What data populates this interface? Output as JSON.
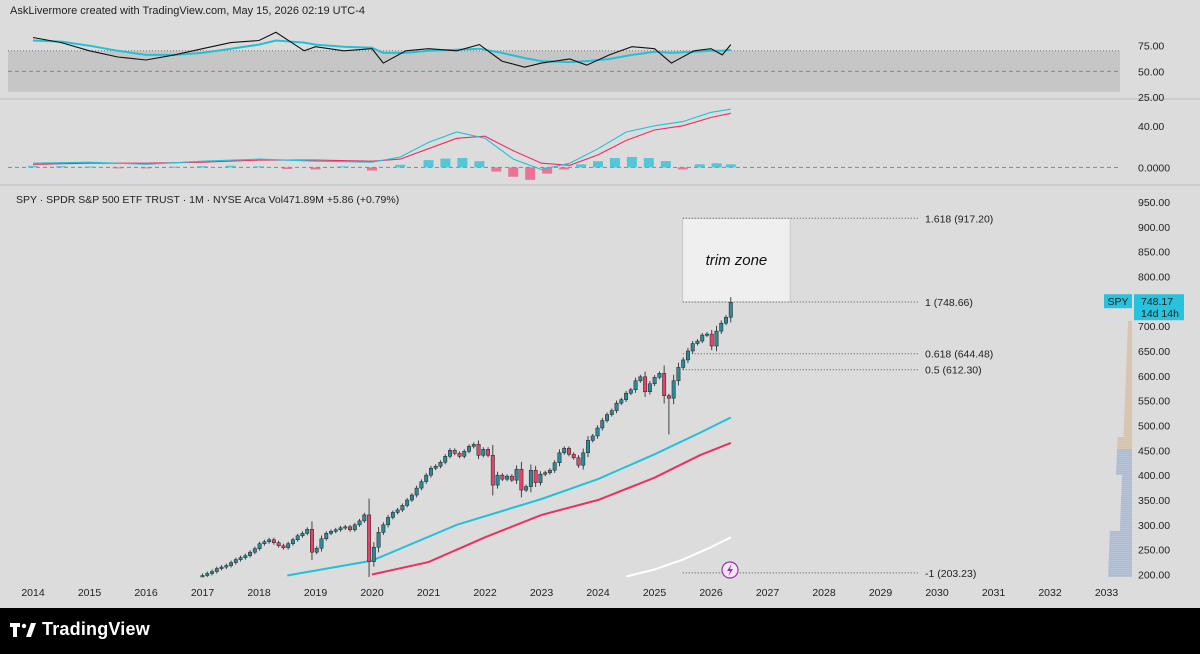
{
  "header": {
    "credit": "AskLivermore created with TradingView.com, May 15, 2026 02:19 UTC-4"
  },
  "symbol": {
    "line": "SPY · SPDR S&P 500 ETF TRUST · 1M · NYSE Arca  Vol471.89M  +5.86 (+0.79%)"
  },
  "price_tag": {
    "symbol": "SPY",
    "price": "748.17",
    "countdown": "14d 14h"
  },
  "annotation": {
    "trim_zone": "trim zone"
  },
  "footer": {
    "brand": "TradingView"
  },
  "colors": {
    "background": "#dcdcdc",
    "candle_up": "#2a8a96",
    "candle_down": "#e0456e",
    "ma_cyan": "#22c1d8",
    "ma_red": "#ee2e63",
    "ma_white": "#ffffff",
    "rsi_line": "#111111",
    "rsi_signal": "#22c1d8",
    "macd_line": "#22c1d8",
    "macd_signal": "#ee2e63"
  },
  "chart_data": [
    {
      "type": "line",
      "panel": "rsi",
      "y_ticks": [
        "75.00",
        "50.00",
        "25.00"
      ],
      "ylim": [
        25,
        100
      ],
      "band": [
        30,
        70
      ],
      "x_years": [
        2014.0,
        2014.5,
        2015.0,
        2015.5,
        2016.0,
        2016.5,
        2017.0,
        2017.5,
        2018.0,
        2018.3,
        2018.8,
        2019.0,
        2019.5,
        2020.0,
        2020.2,
        2020.6,
        2021.0,
        2021.5,
        2021.9,
        2022.3,
        2022.7,
        2023.0,
        2023.5,
        2023.8,
        2024.2,
        2024.6,
        2025.0,
        2025.3,
        2025.7,
        2026.0,
        2026.2,
        2026.35
      ],
      "rsi": [
        83,
        78,
        70,
        64,
        61,
        66,
        72,
        78,
        80,
        88,
        70,
        74,
        70,
        72,
        58,
        70,
        72,
        70,
        76,
        60,
        54,
        58,
        62,
        56,
        66,
        74,
        72,
        58,
        70,
        72,
        66,
        76
      ],
      "signal": [
        80,
        79,
        75,
        70,
        66,
        66,
        68,
        72,
        76,
        80,
        78,
        76,
        74,
        73,
        68,
        68,
        70,
        71,
        72,
        68,
        63,
        60,
        59,
        60,
        62,
        66,
        69,
        68,
        69,
        70,
        70,
        71
      ]
    },
    {
      "type": "bar",
      "panel": "macd",
      "y_ticks": [
        "40.00",
        "0.0000"
      ],
      "ylim": [
        -15,
        60
      ],
      "x_years": [
        2014.0,
        2015.0,
        2016.0,
        2017.0,
        2018.0,
        2019.0,
        2020.0,
        2020.5,
        2021.0,
        2021.5,
        2022.0,
        2022.5,
        2023.0,
        2023.5,
        2024.0,
        2024.5,
        2025.0,
        2025.5,
        2026.0,
        2026.35
      ],
      "macd": [
        4,
        5,
        3,
        6,
        8,
        6,
        5,
        10,
        24,
        34,
        28,
        8,
        -2,
        4,
        18,
        34,
        40,
        44,
        53,
        56
      ],
      "signal": [
        3,
        4,
        4,
        5,
        7,
        7,
        6,
        8,
        18,
        28,
        30,
        16,
        4,
        2,
        12,
        26,
        36,
        40,
        48,
        52
      ],
      "histogram_x": [
        2014.0,
        2014.5,
        2015.0,
        2015.5,
        2016.0,
        2016.5,
        2017.0,
        2017.5,
        2018.0,
        2018.5,
        2019.0,
        2019.5,
        2020.0,
        2020.5,
        2021.0,
        2021.3,
        2021.6,
        2021.9,
        2022.2,
        2022.5,
        2022.8,
        2023.1,
        2023.4,
        2023.7,
        2024.0,
        2024.3,
        2024.6,
        2024.9,
        2025.2,
        2025.5,
        2025.8,
        2026.1,
        2026.35
      ],
      "histogram": [
        1.5,
        1.2,
        0.8,
        -0.6,
        -0.8,
        0.6,
        1.2,
        1.6,
        1.0,
        -1.5,
        -2.0,
        1.0,
        -3.0,
        2.5,
        7.0,
        8.5,
        9.0,
        6.0,
        -4.0,
        -9.0,
        -12.0,
        -6.0,
        -2.0,
        3.0,
        6.0,
        9.0,
        10.0,
        9.0,
        6.0,
        -2.0,
        3.0,
        4.0,
        3.0
      ]
    },
    {
      "type": "candlestick",
      "panel": "price",
      "title": "SPY · SPDR S&P 500 ETF TRUST · 1M · NYSE Arca",
      "x_ticks": [
        "2014",
        "2015",
        "2016",
        "2017",
        "2018",
        "2019",
        "2020",
        "2021",
        "2022",
        "2023",
        "2024",
        "2025",
        "2026",
        "2027",
        "2028",
        "2029",
        "2030",
        "2031",
        "2032",
        "2033"
      ],
      "xlim": [
        2014,
        2033
      ],
      "y_ticks": [
        "950.00",
        "900.00",
        "850.00",
        "800.00",
        "750.00",
        "700.00",
        "650.00",
        "600.00",
        "550.00",
        "500.00",
        "450.00",
        "400.00",
        "350.00",
        "300.00",
        "250.00",
        "200.00"
      ],
      "ylim": [
        195,
        960
      ],
      "closes": [
        198,
        202,
        206,
        212,
        215,
        218,
        224,
        230,
        234,
        238,
        245,
        252,
        262,
        266,
        270,
        264,
        258,
        254,
        262,
        270,
        278,
        283,
        291,
        245,
        253,
        272,
        283,
        287,
        290,
        294,
        296,
        290,
        300,
        308,
        320,
        226,
        255,
        285,
        300,
        315,
        325,
        330,
        339,
        350,
        360,
        374,
        387,
        400,
        414,
        418,
        426,
        438,
        450,
        444,
        438,
        448,
        458,
        462,
        440,
        452,
        440,
        380,
        400,
        392,
        398,
        390,
        412,
        370,
        377,
        410,
        385,
        402,
        405,
        410,
        425,
        445,
        454,
        442,
        435,
        420,
        445,
        470,
        479,
        495,
        510,
        522,
        530,
        545,
        552,
        565,
        572,
        590,
        598,
        568,
        584,
        597,
        605,
        560,
        555,
        590,
        617,
        632,
        650,
        665,
        670,
        682,
        684,
        660,
        690,
        706,
        718,
        748
      ],
      "moving_averages": {
        "ma_cyan": {
          "x": [
            2018.5,
            2020.0,
            2021.5,
            2023.0,
            2024.0,
            2025.0,
            2025.8,
            2026.35
          ],
          "y": [
            198,
            228,
            300,
            352,
            392,
            442,
            485,
            516
          ]
        },
        "ma_red": {
          "x": [
            2020.0,
            2021.0,
            2022.0,
            2023.0,
            2024.0,
            2025.0,
            2025.8,
            2026.35
          ],
          "y": [
            200,
            225,
            275,
            320,
            350,
            395,
            440,
            465
          ]
        },
        "ma_white": {
          "x": [
            2024.5,
            2025.0,
            2025.5,
            2026.0,
            2026.35
          ],
          "y": [
            196,
            210,
            230,
            255,
            275
          ]
        }
      },
      "fib_levels": [
        {
          "label": "1.618 (917.20)",
          "value": 917.2
        },
        {
          "label": "1 (748.66)",
          "value": 748.66
        },
        {
          "label": "0.618 (644.48)",
          "value": 644.48
        },
        {
          "label": "0.5 (612.30)",
          "value": 612.3
        },
        {
          "label": "-1 (203.23)",
          "value": 203.23
        }
      ],
      "trim_zone": [
        748.66,
        917.2
      ],
      "last_price": 748.17
    }
  ]
}
